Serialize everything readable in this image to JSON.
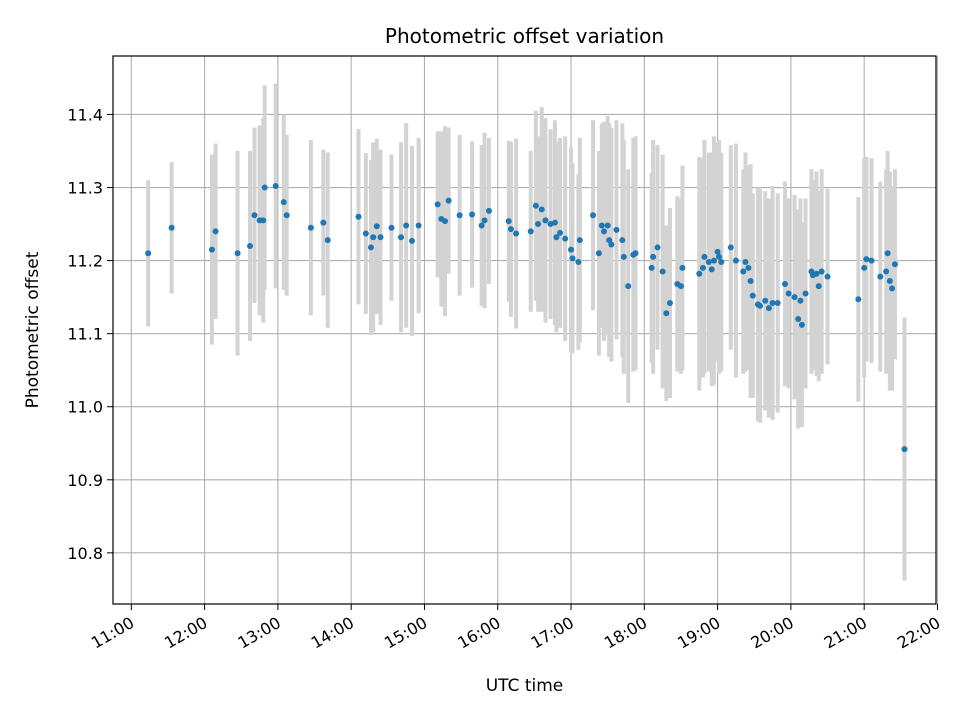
{
  "chart_data": {
    "type": "scatter",
    "title": "Photometric offset variation",
    "xlabel": "UTC time",
    "ylabel": "Photometric offset",
    "grid": true,
    "xlim_hours": [
      10.75,
      21.98
    ],
    "ylim": [
      10.73,
      11.48
    ],
    "x_ticks_hours": [
      11,
      12,
      13,
      14,
      15,
      16,
      17,
      18,
      19,
      20,
      21,
      22
    ],
    "x_tick_labels": [
      "11:00",
      "12:00",
      "13:00",
      "14:00",
      "15:00",
      "16:00",
      "17:00",
      "18:00",
      "19:00",
      "20:00",
      "21:00",
      "22:00"
    ],
    "y_ticks": [
      10.8,
      10.9,
      11.0,
      11.1,
      11.2,
      11.3,
      11.4
    ],
    "y_tick_labels": [
      "10.8",
      "10.9",
      "11.0",
      "11.1",
      "11.2",
      "11.3",
      "11.4"
    ],
    "colors": {
      "point": "#1f77b4",
      "errorbar": "#d3d3d3",
      "grid": "#b0b0b0"
    },
    "series": [
      {
        "points": [
          [
            11.23,
            11.21,
            0.1
          ],
          [
            11.55,
            11.245,
            0.09
          ],
          [
            12.1,
            11.215,
            0.13
          ],
          [
            12.15,
            11.24,
            0.12
          ],
          [
            12.45,
            11.21,
            0.14
          ],
          [
            12.62,
            11.22,
            0.13
          ],
          [
            12.68,
            11.262,
            0.12
          ],
          [
            12.75,
            11.255,
            0.13
          ],
          [
            12.8,
            11.255,
            0.14
          ],
          [
            12.82,
            11.3,
            0.14
          ],
          [
            12.97,
            11.302,
            0.14
          ],
          [
            13.08,
            11.28,
            0.12
          ],
          [
            13.12,
            11.262,
            0.11
          ],
          [
            13.45,
            11.245,
            0.12
          ],
          [
            13.62,
            11.252,
            0.1
          ],
          [
            13.68,
            11.228,
            0.12
          ],
          [
            14.1,
            11.26,
            0.12
          ],
          [
            14.2,
            11.237,
            0.11
          ],
          [
            14.27,
            11.218,
            0.12
          ],
          [
            14.3,
            11.232,
            0.13
          ],
          [
            14.35,
            11.247,
            0.12
          ],
          [
            14.4,
            11.232,
            0.12
          ],
          [
            14.55,
            11.245,
            0.1
          ],
          [
            14.68,
            11.232,
            0.13
          ],
          [
            14.75,
            11.248,
            0.14
          ],
          [
            14.83,
            11.227,
            0.13
          ],
          [
            14.92,
            11.248,
            0.12
          ],
          [
            15.18,
            11.277,
            0.1
          ],
          [
            15.23,
            11.257,
            0.12
          ],
          [
            15.28,
            11.254,
            0.13
          ],
          [
            15.33,
            11.282,
            0.1
          ],
          [
            15.48,
            11.262,
            0.11
          ],
          [
            15.65,
            11.263,
            0.1
          ],
          [
            15.78,
            11.248,
            0.11
          ],
          [
            15.82,
            11.255,
            0.12
          ],
          [
            15.88,
            11.268,
            0.1
          ],
          [
            16.15,
            11.254,
            0.11
          ],
          [
            16.18,
            11.243,
            0.12
          ],
          [
            16.25,
            11.237,
            0.13
          ],
          [
            16.45,
            11.24,
            0.11
          ],
          [
            16.52,
            11.275,
            0.13
          ],
          [
            16.55,
            11.25,
            0.12
          ],
          [
            16.6,
            11.27,
            0.14
          ],
          [
            16.65,
            11.255,
            0.14
          ],
          [
            16.72,
            11.25,
            0.13
          ],
          [
            16.78,
            11.252,
            0.14
          ],
          [
            16.8,
            11.232,
            0.13
          ],
          [
            16.85,
            11.238,
            0.13
          ],
          [
            16.92,
            11.23,
            0.14
          ],
          [
            17.0,
            11.215,
            0.14
          ],
          [
            17.02,
            11.203,
            0.13
          ],
          [
            17.1,
            11.198,
            0.12
          ],
          [
            17.12,
            11.228,
            0.14
          ],
          [
            17.3,
            11.262,
            0.13
          ],
          [
            17.38,
            11.21,
            0.14
          ],
          [
            17.42,
            11.248,
            0.14
          ],
          [
            17.45,
            11.24,
            0.15
          ],
          [
            17.5,
            11.248,
            0.15
          ],
          [
            17.52,
            11.228,
            0.16
          ],
          [
            17.55,
            11.222,
            0.16
          ],
          [
            17.62,
            11.242,
            0.15
          ],
          [
            17.7,
            11.228,
            0.16
          ],
          [
            17.72,
            11.205,
            0.16
          ],
          [
            17.78,
            11.165,
            0.16
          ],
          [
            17.85,
            11.208,
            0.16
          ],
          [
            17.88,
            11.21,
            0.16
          ],
          [
            18.1,
            11.19,
            0.13
          ],
          [
            18.12,
            11.205,
            0.16
          ],
          [
            18.18,
            11.218,
            0.14
          ],
          [
            18.25,
            11.185,
            0.16
          ],
          [
            18.3,
            11.128,
            0.12
          ],
          [
            18.35,
            11.142,
            0.13
          ],
          [
            18.45,
            11.168,
            0.12
          ],
          [
            18.5,
            11.165,
            0.12
          ],
          [
            18.52,
            11.19,
            0.14
          ],
          [
            18.75,
            11.182,
            0.16
          ],
          [
            18.8,
            11.19,
            0.15
          ],
          [
            18.82,
            11.205,
            0.16
          ],
          [
            18.88,
            11.198,
            0.15
          ],
          [
            18.92,
            11.188,
            0.16
          ],
          [
            18.95,
            11.2,
            0.17
          ],
          [
            19.0,
            11.212,
            0.15
          ],
          [
            19.02,
            11.205,
            0.16
          ],
          [
            19.05,
            11.198,
            0.15
          ],
          [
            19.18,
            11.218,
            0.14
          ],
          [
            19.25,
            11.2,
            0.16
          ],
          [
            19.35,
            11.185,
            0.14
          ],
          [
            19.38,
            11.198,
            0.15
          ],
          [
            19.42,
            11.19,
            0.14
          ],
          [
            19.45,
            11.172,
            0.16
          ],
          [
            19.48,
            11.152,
            0.14
          ],
          [
            19.55,
            11.14,
            0.16
          ],
          [
            19.58,
            11.138,
            0.16
          ],
          [
            19.65,
            11.145,
            0.15
          ],
          [
            19.7,
            11.135,
            0.15
          ],
          [
            19.75,
            11.142,
            0.16
          ],
          [
            19.82,
            11.142,
            0.15
          ],
          [
            19.92,
            11.168,
            0.14
          ],
          [
            19.97,
            11.155,
            0.13
          ],
          [
            20.05,
            11.15,
            0.14
          ],
          [
            20.1,
            11.12,
            0.15
          ],
          [
            20.13,
            11.145,
            0.14
          ],
          [
            20.15,
            11.112,
            0.14
          ],
          [
            20.2,
            11.155,
            0.13
          ],
          [
            20.28,
            11.185,
            0.14
          ],
          [
            20.3,
            11.18,
            0.13
          ],
          [
            20.35,
            11.182,
            0.14
          ],
          [
            20.38,
            11.165,
            0.13
          ],
          [
            20.42,
            11.185,
            0.14
          ],
          [
            20.5,
            11.178,
            0.12
          ],
          [
            20.92,
            11.147,
            0.14
          ],
          [
            21.0,
            11.19,
            0.15
          ],
          [
            21.03,
            11.202,
            0.14
          ],
          [
            21.1,
            11.2,
            0.14
          ],
          [
            21.22,
            11.178,
            0.13
          ],
          [
            21.3,
            11.185,
            0.14
          ],
          [
            21.32,
            11.21,
            0.14
          ],
          [
            21.35,
            11.172,
            0.15
          ],
          [
            21.38,
            11.162,
            0.14
          ],
          [
            21.42,
            11.195,
            0.13
          ],
          [
            21.55,
            10.942,
            0.18
          ]
        ]
      }
    ]
  }
}
